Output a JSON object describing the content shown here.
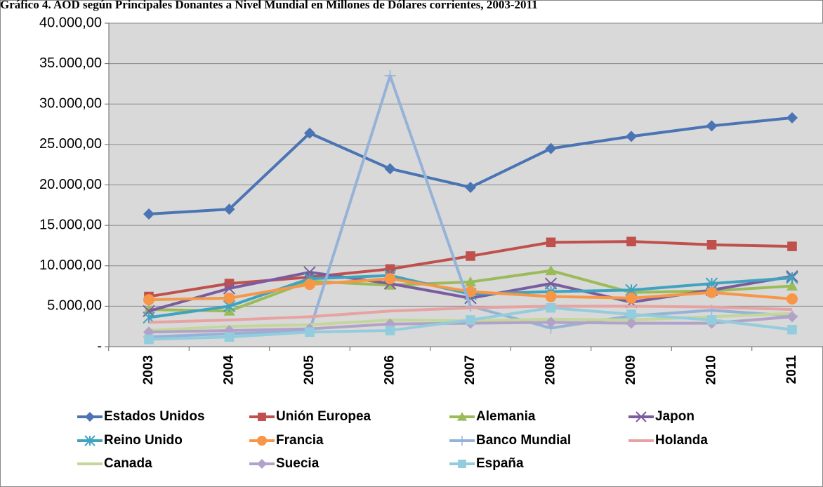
{
  "chart_data": {
    "type": "line",
    "title": "Gráfico 4. AOD según Principales Donantes a Nivel Mundial en Millones de Dólares corrientes, 2003-2011",
    "categories": [
      "2003",
      "2004",
      "2005",
      "2006",
      "2007",
      "2008",
      "2009",
      "2010",
      "2011"
    ],
    "ylim": [
      0,
      40000
    ],
    "yticks": [
      {
        "value": 0,
        "label": "-"
      },
      {
        "value": 5000,
        "label": "5.000,00"
      },
      {
        "value": 10000,
        "label": "10.000,00"
      },
      {
        "value": 15000,
        "label": "15.000,00"
      },
      {
        "value": 20000,
        "label": "20.000,00"
      },
      {
        "value": 25000,
        "label": "25.000,00"
      },
      {
        "value": 30000,
        "label": "30.000,00"
      },
      {
        "value": 35000,
        "label": "35.000,00"
      },
      {
        "value": 40000,
        "label": "40.000,00"
      }
    ],
    "grid": true,
    "legend": "bottom",
    "series": [
      {
        "name": "Estados Unidos",
        "color": "#4a74b4",
        "marker": "diamond",
        "values": [
          16400,
          17000,
          26400,
          22000,
          19700,
          24500,
          26000,
          27300,
          28300
        ]
      },
      {
        "name": "Unión Europea",
        "color": "#c0504d",
        "marker": "square",
        "values": [
          6200,
          7800,
          8600,
          9600,
          11200,
          12900,
          13000,
          12600,
          12400
        ]
      },
      {
        "name": "Alemania",
        "color": "#9bbb59",
        "marker": "triangle",
        "values": [
          4600,
          4400,
          8100,
          7600,
          8000,
          9400,
          6700,
          6900,
          7500
        ]
      },
      {
        "name": "Japon",
        "color": "#7a5c9e",
        "marker": "x",
        "values": [
          4400,
          7200,
          9200,
          7800,
          6000,
          7800,
          5500,
          7000,
          8700
        ]
      },
      {
        "name": "Reino Unido",
        "color": "#3fa3bf",
        "marker": "star",
        "values": [
          3600,
          5000,
          8400,
          8800,
          6500,
          6800,
          7000,
          7800,
          8500
        ]
      },
      {
        "name": "Francia",
        "color": "#f79646",
        "marker": "circle",
        "values": [
          5800,
          6000,
          7700,
          8400,
          6800,
          6200,
          6000,
          6700,
          5900
        ]
      },
      {
        "name": "Banco Mundial",
        "color": "#95b3d7",
        "marker": "plus",
        "values": [
          1200,
          1600,
          2000,
          33500,
          5000,
          2300,
          3800,
          4500,
          3800
        ]
      },
      {
        "name": "Holanda",
        "color": "#e6a3a1",
        "marker": "none",
        "values": [
          3000,
          3300,
          3700,
          4400,
          4800,
          5000,
          5000,
          4900,
          4600
        ]
      },
      {
        "name": "Canada",
        "color": "#c3d69b",
        "marker": "none",
        "values": [
          2000,
          2500,
          2700,
          3300,
          3200,
          3400,
          3300,
          3700,
          4100
        ]
      },
      {
        "name": "Suecia",
        "color": "#b3a2c7",
        "marker": "diamond",
        "values": [
          1800,
          2000,
          2200,
          2800,
          2900,
          3000,
          2900,
          2900,
          3700
        ]
      },
      {
        "name": "España",
        "color": "#93cddd",
        "marker": "square",
        "values": [
          900,
          1200,
          1800,
          2000,
          3300,
          4800,
          4000,
          3300,
          2100
        ]
      }
    ]
  }
}
